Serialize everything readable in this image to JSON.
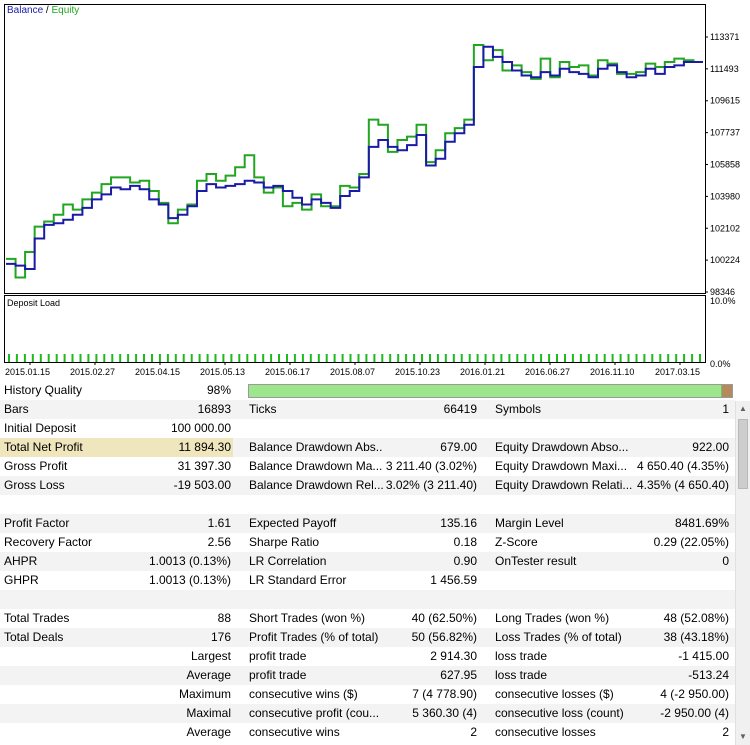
{
  "chart": {
    "legend_balance": "Balance",
    "legend_sep": " / ",
    "legend_equity": "Equity",
    "y_ticks": [
      "113371",
      "111493",
      "109615",
      "107737",
      "105858",
      "103980",
      "102102",
      "100224",
      "98346"
    ],
    "x_ticks": [
      "2015.01.15",
      "2015.02.27",
      "2015.04.15",
      "2015.05.13",
      "2015.06.17",
      "2015.08.07",
      "2015.10.23",
      "2016.01.21",
      "2016.06.27",
      "2016.11.10",
      "2017.03.15"
    ],
    "colors": {
      "balance": "#1a1aa6",
      "equity": "#22a622",
      "load_bars": "#1fb81f"
    }
  },
  "chart_data": {
    "type": "line",
    "ylim": [
      98346,
      113371
    ],
    "x_tick_labels": [
      "2015.01.15",
      "2015.02.27",
      "2015.04.15",
      "2015.05.13",
      "2015.06.17",
      "2015.08.07",
      "2015.10.23",
      "2016.01.21",
      "2016.06.27",
      "2016.11.10",
      "2017.03.15"
    ],
    "series": [
      {
        "name": "Balance",
        "values": [
          100000,
          99900,
          99700,
          101500,
          102300,
          102400,
          102600,
          102900,
          103300,
          103800,
          104100,
          104500,
          104400,
          104600,
          104400,
          103800,
          103500,
          102700,
          102900,
          103400,
          104300,
          104700,
          104500,
          104600,
          104700,
          104900,
          104800,
          104500,
          104600,
          104300,
          103900,
          103500,
          103800,
          103600,
          103300,
          104000,
          104300,
          105100,
          106900,
          107300,
          106900,
          106700,
          107000,
          107600,
          105800,
          106200,
          107200,
          107700,
          108200,
          111600,
          112800,
          112200,
          111900,
          111400,
          111100,
          111000,
          111300,
          111100,
          111500,
          111300,
          111200,
          111000,
          111500,
          111700,
          111300,
          111000,
          111100,
          111500,
          111200,
          111600,
          111700,
          111900,
          111900
        ]
      },
      {
        "name": "Equity",
        "values": [
          100300,
          99200,
          100700,
          102200,
          102500,
          102900,
          103500,
          103200,
          103800,
          104200,
          104700,
          105100,
          105100,
          104800,
          104900,
          104300,
          103600,
          102400,
          103200,
          103500,
          104900,
          105300,
          104900,
          105200,
          105700,
          106400,
          105100,
          104200,
          104500,
          103400,
          103600,
          103200,
          104100,
          103400,
          103400,
          104600,
          104500,
          105300,
          108500,
          108200,
          106600,
          107300,
          107500,
          108200,
          106000,
          106700,
          107700,
          108000,
          108500,
          112900,
          112000,
          112600,
          111400,
          111700,
          111300,
          110900,
          112100,
          111000,
          111900,
          111600,
          111700,
          111100,
          112000,
          111800,
          111200,
          111200,
          111300,
          111800,
          111600,
          111900,
          112100,
          112000,
          111900
        ]
      }
    ],
    "title": "",
    "grid": false,
    "legend": "top-left"
  },
  "deposit_load": {
    "title": "Deposit Load",
    "y_top": "10.0%",
    "y_bottom": "0.0%"
  },
  "report": {
    "history_quality_label": "History Quality",
    "history_quality_value": "98%",
    "history_quality_fraction": 0.98,
    "rows": [
      {
        "l0": "Bars",
        "v0": "16893",
        "l1": "Ticks",
        "v1": "66419",
        "l2": "Symbols",
        "v2": "1"
      },
      {
        "l0": "Initial Deposit",
        "v0": "100 000.00",
        "l1": "",
        "v1": "",
        "l2": "",
        "v2": ""
      },
      {
        "l0": "Total Net Profit",
        "v0": "11 894.30",
        "l1": "Balance Drawdown Abs...",
        "v1": "679.00",
        "l2": "Equity Drawdown Abso...",
        "v2": "922.00"
      },
      {
        "l0": "Gross Profit",
        "v0": "31 397.30",
        "l1": "Balance Drawdown Ma...",
        "v1": "3 211.40 (3.02%)",
        "l2": "Equity Drawdown Maxi...",
        "v2": "4 650.40 (4.35%)"
      },
      {
        "l0": "Gross Loss",
        "v0": "-19 503.00",
        "l1": "Balance Drawdown Rel...",
        "v1": "3.02% (3 211.40)",
        "l2": "Equity Drawdown Relati...",
        "v2": "4.35% (4 650.40)"
      },
      {
        "l0": "",
        "v0": "",
        "l1": "",
        "v1": "",
        "l2": "",
        "v2": ""
      },
      {
        "l0": "Profit Factor",
        "v0": "1.61",
        "l1": "Expected Payoff",
        "v1": "135.16",
        "l2": "Margin Level",
        "v2": "8481.69%"
      },
      {
        "l0": "Recovery Factor",
        "v0": "2.56",
        "l1": "Sharpe Ratio",
        "v1": "0.18",
        "l2": "Z-Score",
        "v2": "0.29 (22.05%)"
      },
      {
        "l0": "AHPR",
        "v0": "1.0013 (0.13%)",
        "l1": "LR Correlation",
        "v1": "0.90",
        "l2": "OnTester result",
        "v2": "0"
      },
      {
        "l0": "GHPR",
        "v0": "1.0013 (0.13%)",
        "l1": "LR Standard Error",
        "v1": "1 456.59",
        "l2": "",
        "v2": ""
      },
      {
        "l0": "",
        "v0": "",
        "l1": "",
        "v1": "",
        "l2": "",
        "v2": ""
      },
      {
        "l0": "Total Trades",
        "v0": "88",
        "l1": "Short Trades (won %)",
        "v1": "40 (62.50%)",
        "l2": "Long Trades (won %)",
        "v2": "48 (52.08%)"
      },
      {
        "l0": "Total Deals",
        "v0": "176",
        "l1": "Profit Trades (% of total)",
        "v1": "50 (56.82%)",
        "l2": "Loss Trades (% of total)",
        "v2": "38 (43.18%)"
      },
      {
        "l0": "",
        "v0": "Largest",
        "l1": "profit trade",
        "v1": "2 914.30",
        "l2": "loss trade",
        "v2": "-1 415.00"
      },
      {
        "l0": "",
        "v0": "Average",
        "l1": "profit trade",
        "v1": "627.95",
        "l2": "loss trade",
        "v2": "-513.24"
      },
      {
        "l0": "",
        "v0": "Maximum",
        "l1": "consecutive wins ($)",
        "v1": "7 (4 778.90)",
        "l2": "consecutive losses ($)",
        "v2": "4 (-2 950.00)"
      },
      {
        "l0": "",
        "v0": "Maximal",
        "l1": "consecutive profit (cou...",
        "v1": "5 360.30 (4)",
        "l2": "consecutive loss (count)",
        "v2": "-2 950.00 (4)"
      },
      {
        "l0": "",
        "v0": "Average",
        "l1": "consecutive wins",
        "v1": "2",
        "l2": "consecutive losses",
        "v2": "2"
      }
    ]
  },
  "scrollbar": {
    "up_icon": "▲",
    "down_icon": "▼"
  }
}
